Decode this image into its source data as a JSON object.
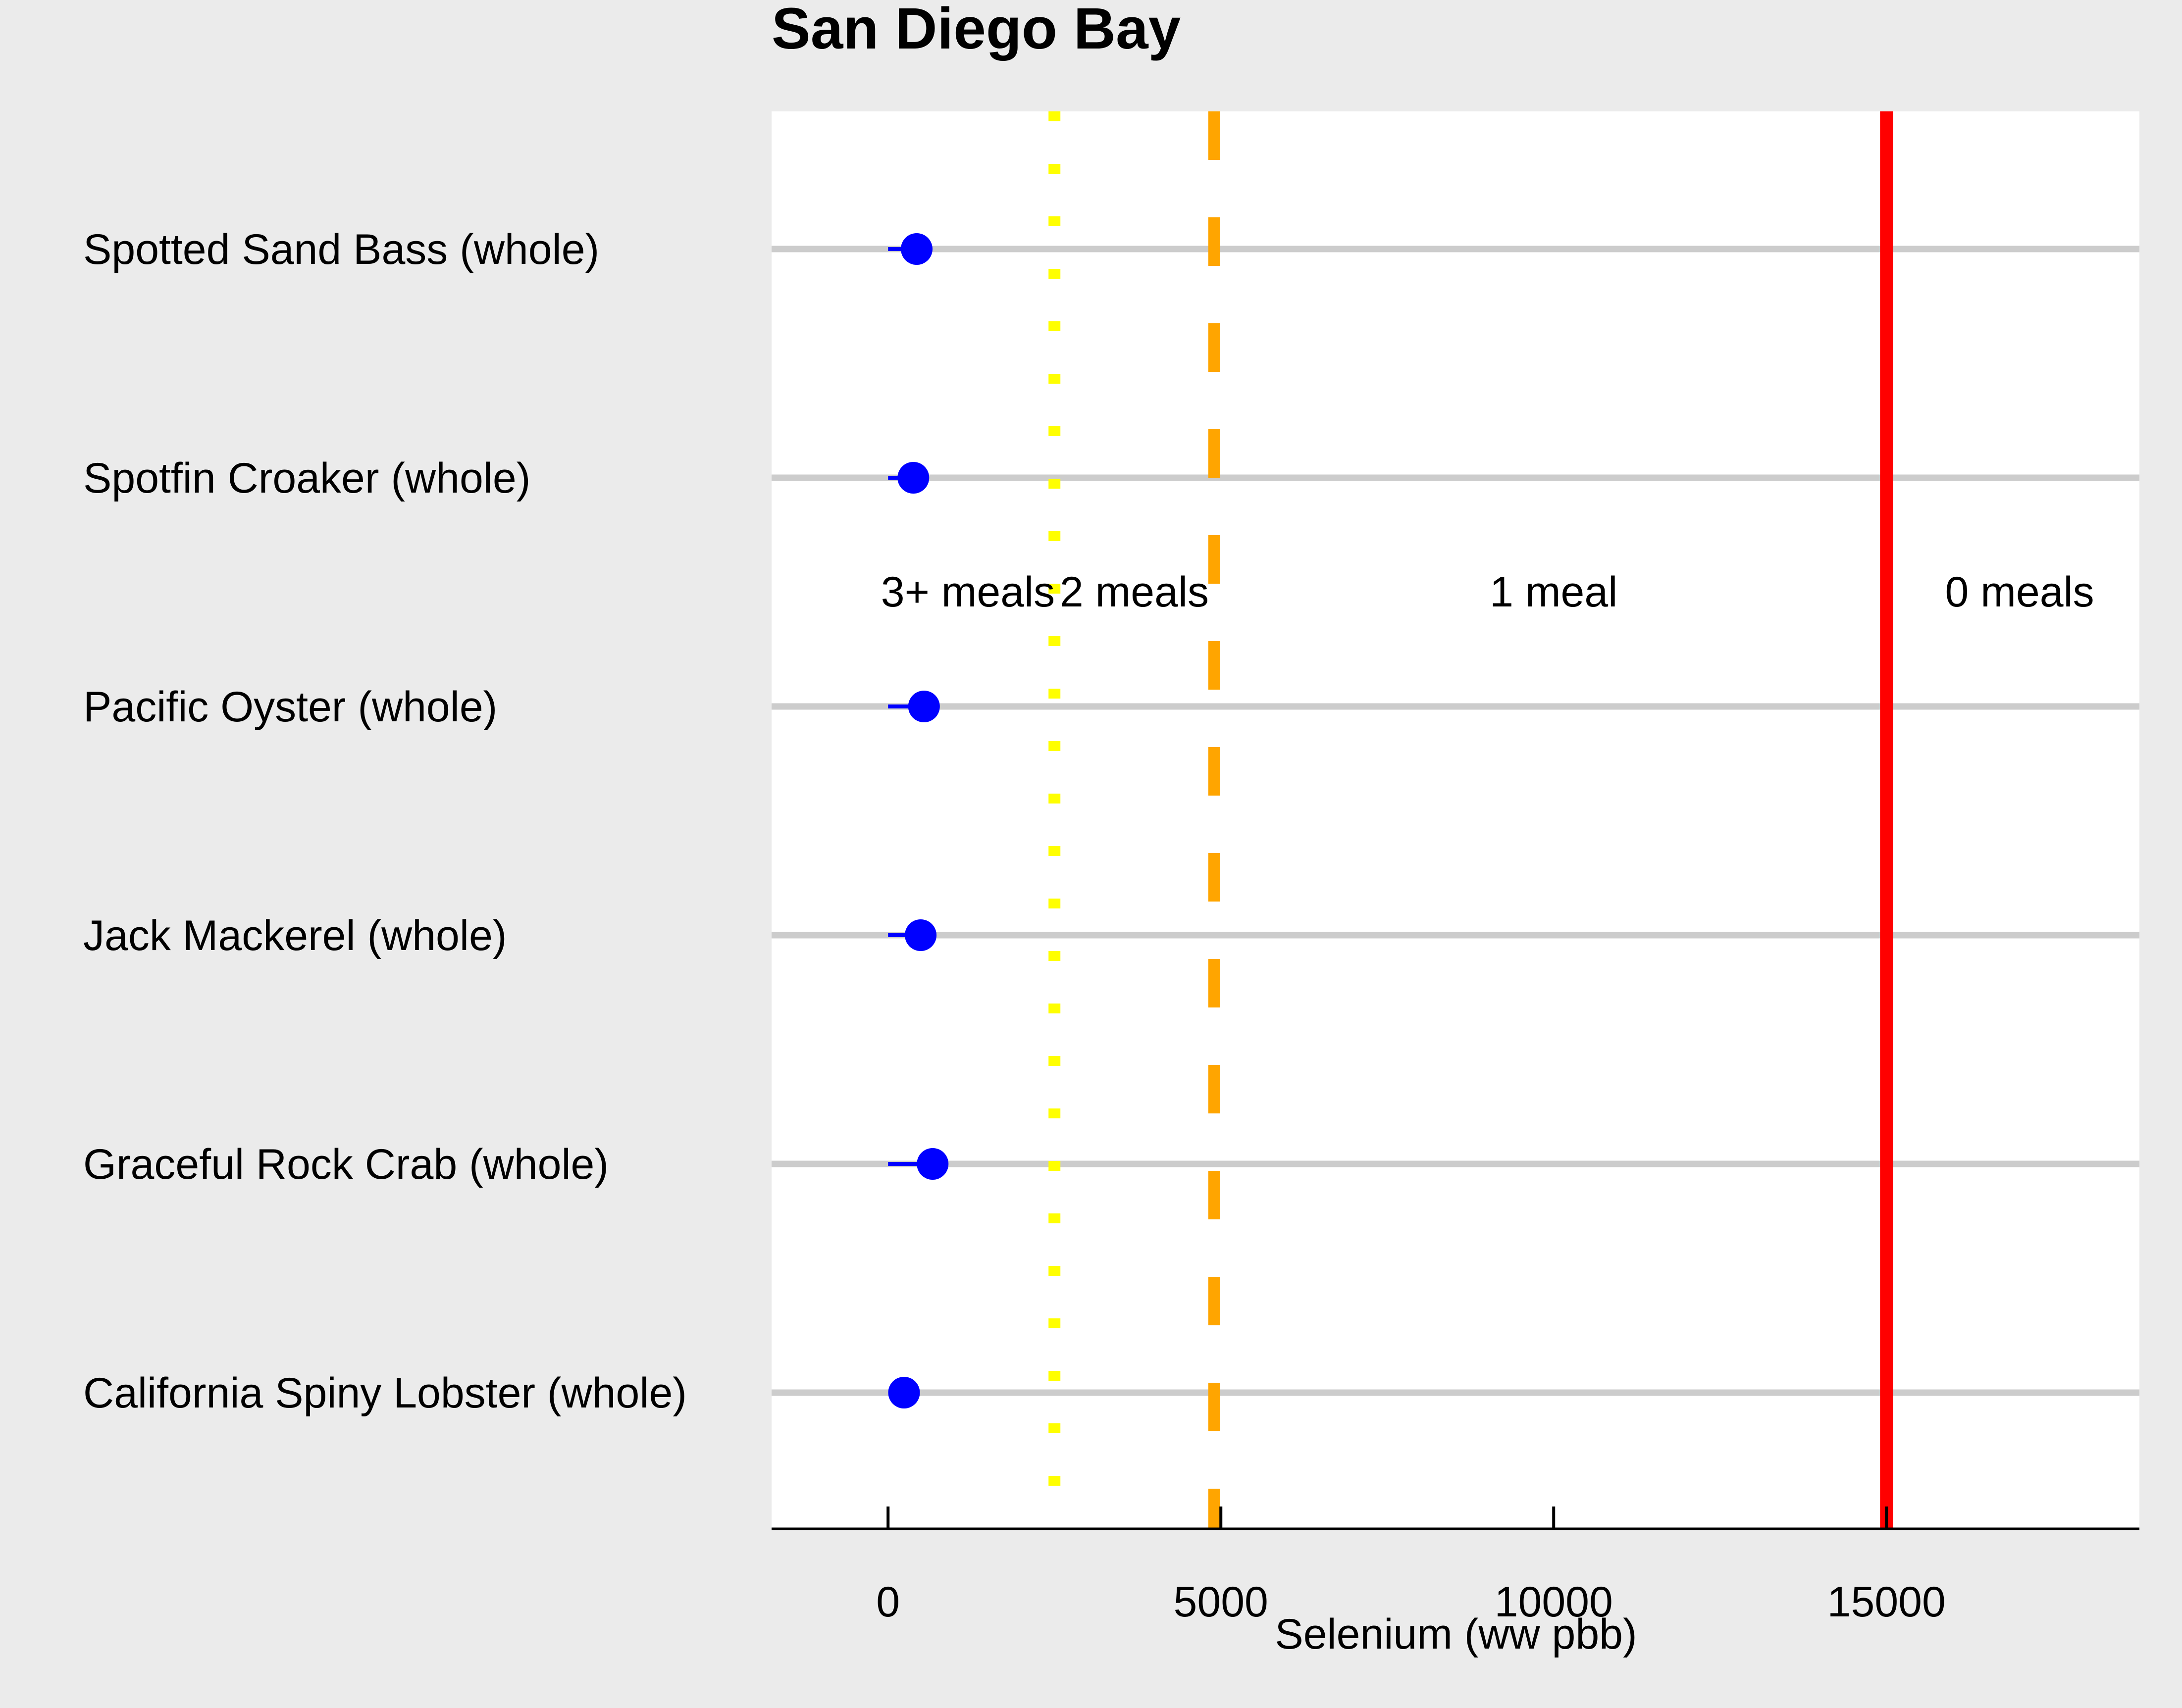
{
  "chart_data": {
    "type": "dot",
    "title": "San Diego Bay",
    "xlabel": "Selenium (ww pbb)",
    "ylabel": "",
    "xlim": [
      -1750,
      18800
    ],
    "xticks": [
      0,
      5000,
      10000,
      15000
    ],
    "grid": "horizontal",
    "categories": [
      "Spotted Sand Bass (whole)",
      "Spotfin Croaker (whole)",
      "Pacific Oyster (whole)",
      "Jack Mackerel (whole)",
      "Graceful Rock Crab (whole)",
      "California Spiny Lobster (whole)"
    ],
    "series": [
      {
        "values": [
          430,
          380,
          540,
          490,
          670,
          240
        ],
        "low": [
          0,
          0,
          0,
          0,
          0,
          240
        ],
        "high": [
          430,
          380,
          540,
          490,
          670,
          240
        ],
        "color": "#0000ff"
      }
    ],
    "thresholds": [
      {
        "value": 2500,
        "style": "dotted",
        "color": "#ffff00"
      },
      {
        "value": 4900,
        "style": "dashed",
        "color": "#ffa500"
      },
      {
        "value": 15000,
        "style": "solid",
        "color": "#ff0000"
      }
    ],
    "annotations": [
      {
        "text": "3+ meals",
        "x": 1200
      },
      {
        "text": "2 meals",
        "x": 3700
      },
      {
        "text": "1 meal",
        "x": 10000
      },
      {
        "text": "0 meals",
        "x": 17000
      }
    ],
    "colors": {
      "background": "#ebebeb",
      "panel": "#ffffff",
      "gridline": "#cccccc",
      "axis": "#000000"
    }
  }
}
